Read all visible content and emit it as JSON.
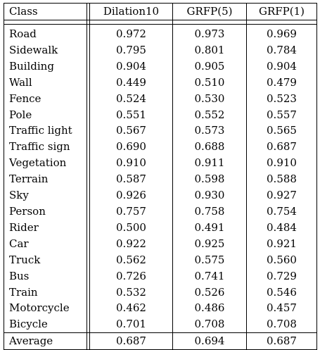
{
  "table": {
    "headers": [
      "Class",
      "Dilation10",
      "GRFP(5)",
      "GRFP(1)"
    ],
    "rows": [
      {
        "class": "Road",
        "dilation10": "0.972",
        "grfp5": "0.973",
        "grfp1": "0.969"
      },
      {
        "class": "Sidewalk",
        "dilation10": "0.795",
        "grfp5": "0.801",
        "grfp1": "0.784"
      },
      {
        "class": "Building",
        "dilation10": "0.904",
        "grfp5": "0.905",
        "grfp1": "0.904"
      },
      {
        "class": "Wall",
        "dilation10": "0.449",
        "grfp5": "0.510",
        "grfp1": "0.479"
      },
      {
        "class": "Fence",
        "dilation10": "0.524",
        "grfp5": "0.530",
        "grfp1": "0.523"
      },
      {
        "class": "Pole",
        "dilation10": "0.551",
        "grfp5": "0.552",
        "grfp1": "0.557"
      },
      {
        "class": "Traffic light",
        "dilation10": "0.567",
        "grfp5": "0.573",
        "grfp1": "0.565"
      },
      {
        "class": "Traffic sign",
        "dilation10": "0.690",
        "grfp5": "0.688",
        "grfp1": "0.687"
      },
      {
        "class": "Vegetation",
        "dilation10": "0.910",
        "grfp5": "0.911",
        "grfp1": "0.910"
      },
      {
        "class": "Terrain",
        "dilation10": "0.587",
        "grfp5": "0.598",
        "grfp1": "0.588"
      },
      {
        "class": "Sky",
        "dilation10": "0.926",
        "grfp5": "0.930",
        "grfp1": "0.927"
      },
      {
        "class": "Person",
        "dilation10": "0.757",
        "grfp5": "0.758",
        "grfp1": "0.754"
      },
      {
        "class": "Rider",
        "dilation10": "0.500",
        "grfp5": "0.491",
        "grfp1": "0.484"
      },
      {
        "class": "Car",
        "dilation10": "0.922",
        "grfp5": "0.925",
        "grfp1": "0.921"
      },
      {
        "class": "Truck",
        "dilation10": "0.562",
        "grfp5": "0.575",
        "grfp1": "0.560"
      },
      {
        "class": "Bus",
        "dilation10": "0.726",
        "grfp5": "0.741",
        "grfp1": "0.729"
      },
      {
        "class": "Train",
        "dilation10": "0.532",
        "grfp5": "0.526",
        "grfp1": "0.546"
      },
      {
        "class": "Motorcycle",
        "dilation10": "0.462",
        "grfp5": "0.486",
        "grfp1": "0.457"
      },
      {
        "class": "Bicycle",
        "dilation10": "0.701",
        "grfp5": "0.708",
        "grfp1": "0.708"
      }
    ],
    "average": {
      "class": "Average",
      "dilation10": "0.687",
      "grfp5": "0.694",
      "grfp1": "0.687"
    }
  }
}
